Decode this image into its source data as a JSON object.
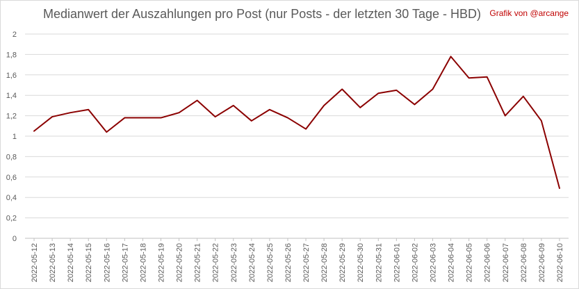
{
  "credit": "Grafik von @arcange",
  "chart_data": {
    "type": "line",
    "title": "Medianwert der Auszahlungen pro Post (nur Posts - der letzten 30 Tage - HBD)",
    "xlabel": "",
    "ylabel": "",
    "ylim": [
      0,
      2
    ],
    "yticks": [
      0,
      0.2,
      0.4,
      0.6,
      0.8,
      1,
      1.2,
      1.4,
      1.6,
      1.8,
      2
    ],
    "ytick_labels": [
      "0",
      "0,2",
      "0,4",
      "0,6",
      "0,8",
      "1",
      "1,2",
      "1,4",
      "1,6",
      "1,8",
      "2"
    ],
    "grid": true,
    "legend": "none",
    "line_color": "#8b0000",
    "categories": [
      "2022-05-12",
      "2022-05-13",
      "2022-05-14",
      "2022-05-15",
      "2022-05-16",
      "2022-05-17",
      "2022-05-18",
      "2022-05-19",
      "2022-05-20",
      "2022-05-21",
      "2022-05-22",
      "2022-05-23",
      "2022-05-24",
      "2022-05-25",
      "2022-05-26",
      "2022-05-27",
      "2022-05-28",
      "2022-05-29",
      "2022-05-30",
      "2022-05-31",
      "2022-06-01",
      "2022-06-02",
      "2022-06-03",
      "2022-06-04",
      "2022-06-05",
      "2022-06-06",
      "2022-06-07",
      "2022-06-08",
      "2022-06-09",
      "2022-06-10"
    ],
    "values": [
      1.05,
      1.19,
      1.23,
      1.26,
      1.04,
      1.18,
      1.18,
      1.18,
      1.23,
      1.35,
      1.19,
      1.3,
      1.15,
      1.26,
      1.18,
      1.07,
      1.3,
      1.46,
      1.28,
      1.42,
      1.45,
      1.31,
      1.46,
      1.78,
      1.57,
      1.58,
      1.2,
      1.39,
      1.15,
      0.49
    ]
  }
}
